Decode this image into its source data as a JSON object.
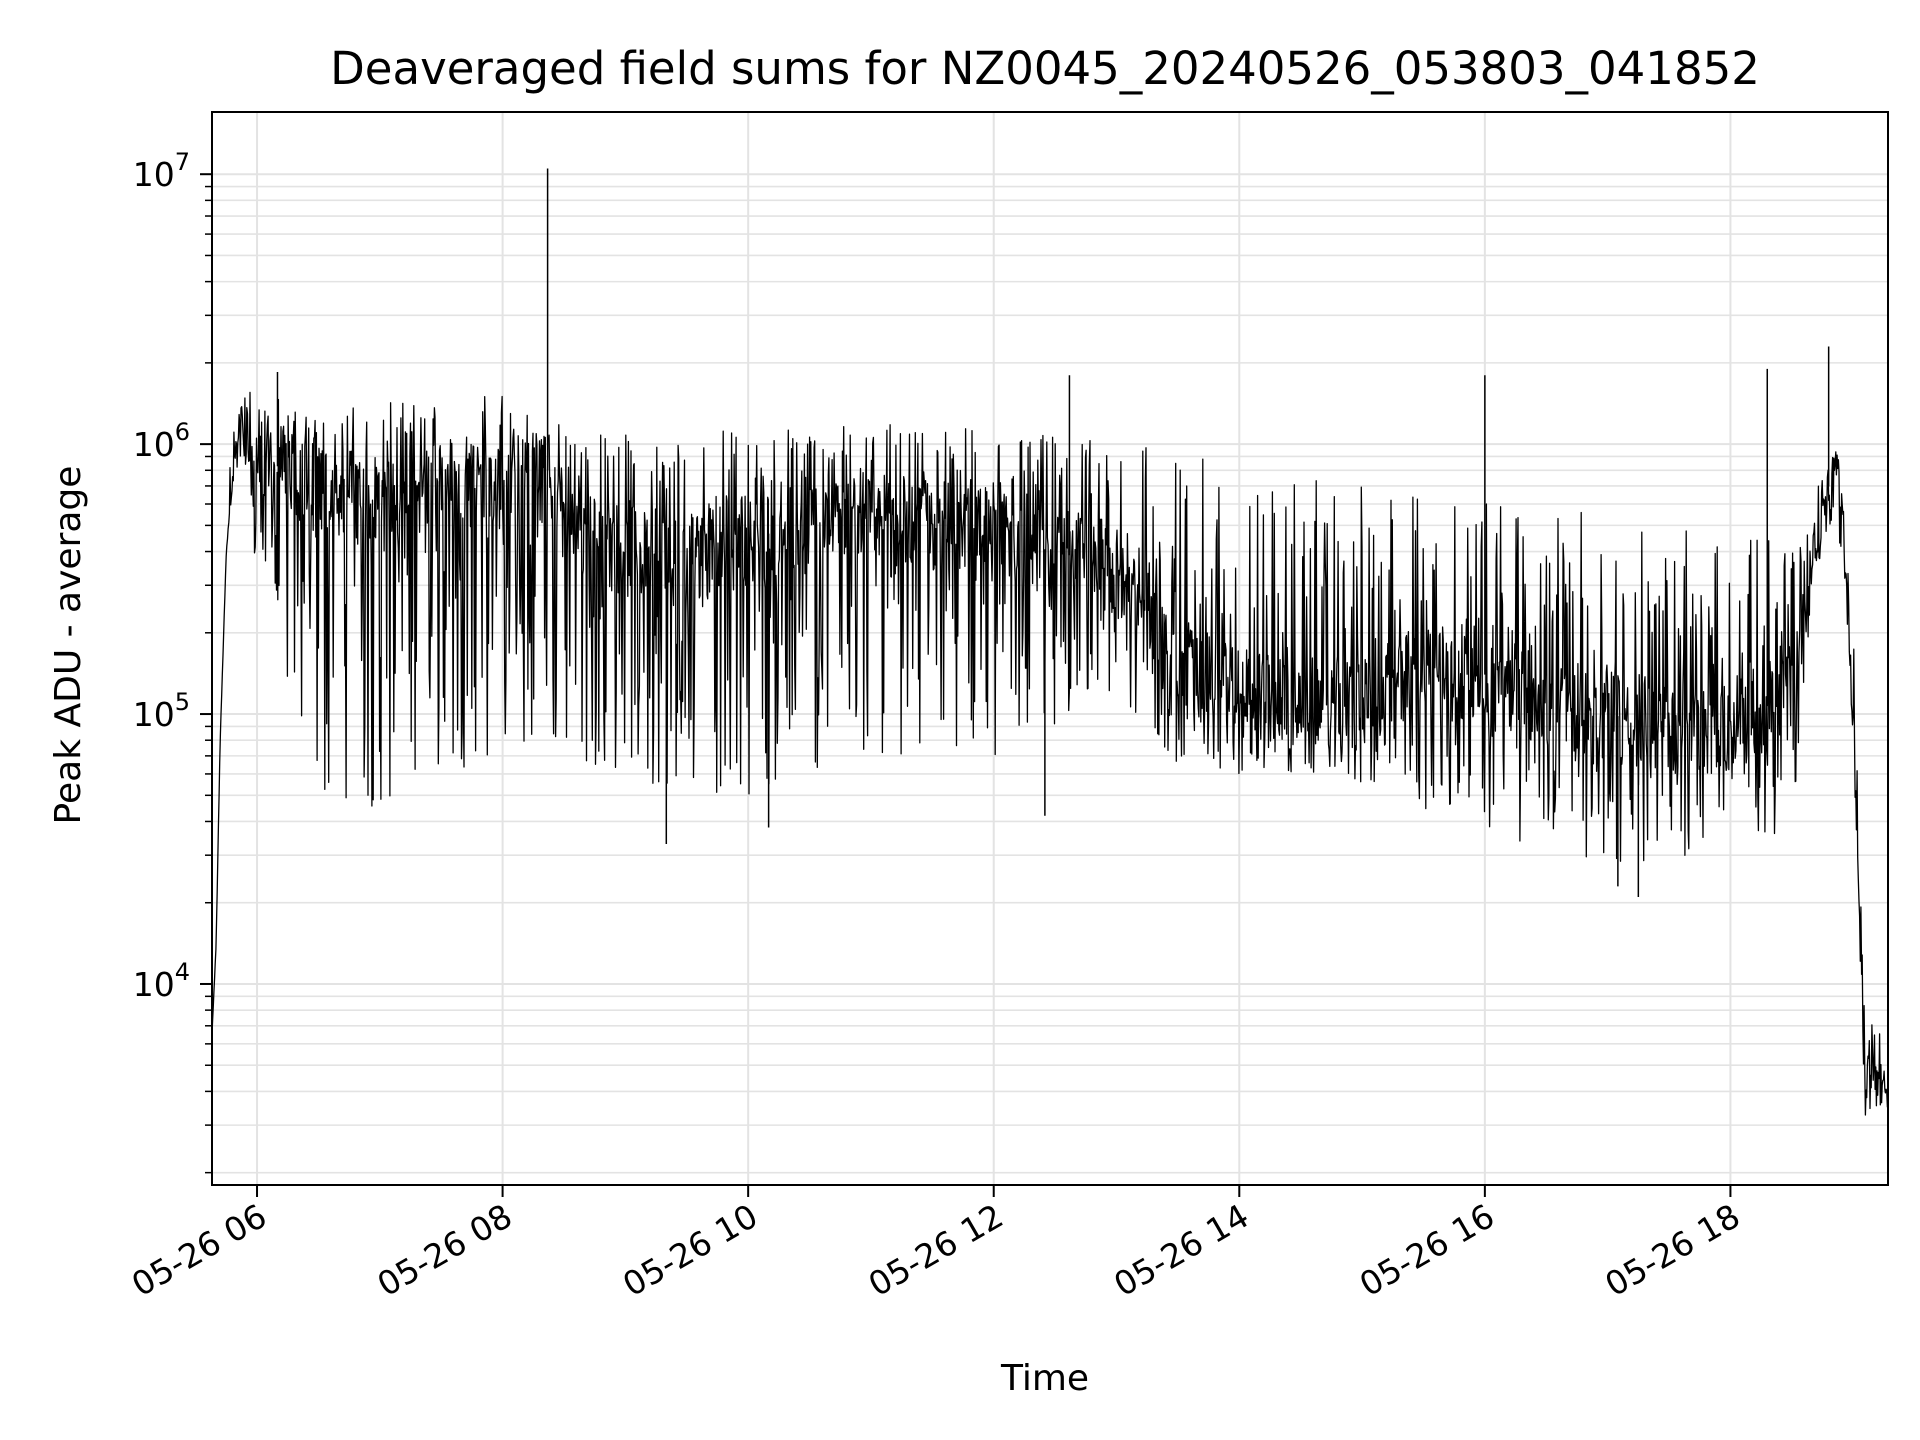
{
  "chart_data": {
    "type": "line",
    "title": "Deaveraged field sums for NZ0045_20240526_053803_041852",
    "xlabel": "Time",
    "ylabel": "Peak ADU - average",
    "yscale": "log",
    "ylim": [
      1800,
      17000000
    ],
    "xlim": [
      "2024-05-26 05:38",
      "2024-05-26 19:17"
    ],
    "grid": true,
    "grid_minor": true,
    "line_color": "#000000",
    "grid_color": "#e3e3e3",
    "x_ticks": [
      {
        "label": "05-26 06",
        "value": "2024-05-26 06:00"
      },
      {
        "label": "05-26 08",
        "value": "2024-05-26 08:00"
      },
      {
        "label": "05-26 10",
        "value": "2024-05-26 10:00"
      },
      {
        "label": "05-26 12",
        "value": "2024-05-26 12:00"
      },
      {
        "label": "05-26 14",
        "value": "2024-05-26 14:00"
      },
      {
        "label": "05-26 16",
        "value": "2024-05-26 16:00"
      },
      {
        "label": "05-26 18",
        "value": "2024-05-26 18:00"
      }
    ],
    "y_ticks": [
      {
        "base": "10",
        "exp": "4",
        "value": 10000
      },
      {
        "base": "10",
        "exp": "5",
        "value": 100000
      },
      {
        "base": "10",
        "exp": "6",
        "value": 1000000
      },
      {
        "base": "10",
        "exp": "7",
        "value": 10000000
      }
    ],
    "series": [
      {
        "x": [
          "2024-05-26 05:38",
          "2024-05-26 05:40",
          "2024-05-26 05:42",
          "2024-05-26 05:45",
          "2024-05-26 05:48",
          "2024-05-26 05:52",
          "2024-05-26 06:00",
          "2024-05-26 06:30",
          "2024-05-26 07:00",
          "2024-05-26 07:30",
          "2024-05-26 08:00",
          "2024-05-26 08:22",
          "2024-05-26 08:30",
          "2024-05-26 09:00",
          "2024-05-26 09:30",
          "2024-05-26 10:00",
          "2024-05-26 10:30",
          "2024-05-26 11:00",
          "2024-05-26 11:30",
          "2024-05-26 12:00",
          "2024-05-26 12:30",
          "2024-05-26 13:00",
          "2024-05-26 13:10",
          "2024-05-26 13:30",
          "2024-05-26 14:00",
          "2024-05-26 14:30",
          "2024-05-26 15:00",
          "2024-05-26 15:10",
          "2024-05-26 15:30",
          "2024-05-26 16:00",
          "2024-05-26 16:30",
          "2024-05-26 17:00",
          "2024-05-26 17:30",
          "2024-05-26 18:00",
          "2024-05-26 18:30",
          "2024-05-26 18:40",
          "2024-05-26 18:50",
          "2024-05-26 18:55",
          "2024-05-26 19:00",
          "2024-05-26 19:06",
          "2024-05-26 19:10",
          "2024-05-26 19:17"
        ],
        "y": [
          6500,
          14000,
          80000,
          400000,
          900000,
          1100000,
          900000,
          700000,
          600000,
          750000,
          700000,
          800000,
          500000,
          400000,
          350000,
          450000,
          500000,
          550000,
          500000,
          450000,
          400000,
          350000,
          300000,
          150000,
          120000,
          110000,
          110000,
          120000,
          150000,
          140000,
          110000,
          100000,
          90000,
          90000,
          120000,
          400000,
          800000,
          500000,
          100000,
          4000,
          5000,
          4000
        ],
        "low": [
          6500,
          14000,
          80000,
          400000,
          700000,
          800000,
          300000,
          45000,
          45000,
          60000,
          70000,
          70000,
          70000,
          60000,
          50000,
          50000,
          60000,
          70000,
          70000,
          70000,
          90000,
          120000,
          100000,
          65000,
          60000,
          60000,
          55000,
          55000,
          45000,
          35000,
          32000,
          28000,
          27000,
          30000,
          35000,
          300000,
          500000,
          400000,
          80000,
          2800,
          3500,
          3500
        ],
        "high": [
          6500,
          14000,
          80000,
          400000,
          1300000,
          1500000,
          1600000,
          1400000,
          1400000,
          1550000,
          1550000,
          1300000,
          1200000,
          1100000,
          1100000,
          1150000,
          1200000,
          1200000,
          1150000,
          1150000,
          1100000,
          1100000,
          1150000,
          950000,
          800000,
          750000,
          700000,
          650000,
          700000,
          650000,
          600000,
          550000,
          500000,
          450000,
          500000,
          600000,
          1000000,
          800000,
          300000,
          7000,
          7500,
          7000
        ],
        "spikes": [
          {
            "x": "2024-05-26 08:22",
            "y": 10500000
          },
          {
            "x": "2024-05-26 12:37",
            "y": 1800000
          },
          {
            "x": "2024-05-26 16:00",
            "y": 1800000
          },
          {
            "x": "2024-05-26 18:18",
            "y": 1900000
          },
          {
            "x": "2024-05-26 18:48",
            "y": 2300000
          },
          {
            "x": "2024-05-26 06:10",
            "y": 1850000
          },
          {
            "x": "2024-05-26 09:20",
            "y": 33000
          },
          {
            "x": "2024-05-26 10:10",
            "y": 38000
          },
          {
            "x": "2024-05-26 12:25",
            "y": 42000
          },
          {
            "x": "2024-05-26 17:05",
            "y": 23000
          },
          {
            "x": "2024-05-26 17:15",
            "y": 21000
          }
        ]
      }
    ]
  }
}
